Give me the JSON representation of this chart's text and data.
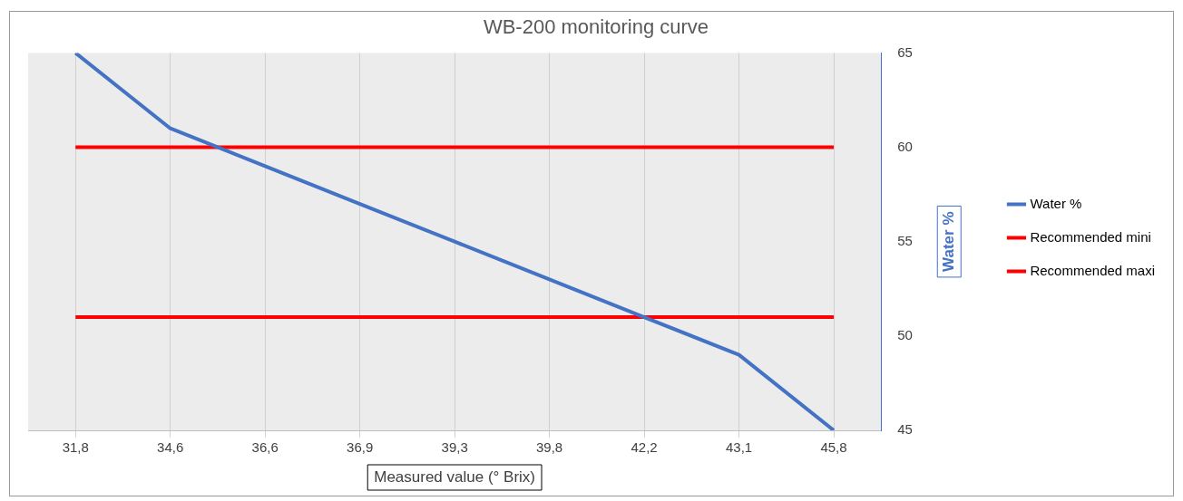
{
  "chart_data": {
    "type": "line",
    "title": "WB-200 monitoring curve",
    "xlabel": "Measured value (° Brix)",
    "ylabel": "Water %",
    "categories": [
      "31,8",
      "34,6",
      "36,6",
      "36,9",
      "39,3",
      "39,8",
      "42,2",
      "43,1",
      "45,8"
    ],
    "series": [
      {
        "name": "Water %",
        "color": "#4472c4",
        "values": [
          65,
          61,
          59,
          57,
          55,
          53,
          51,
          49,
          45
        ]
      },
      {
        "name": "Recommended mini",
        "color": "#ff0000",
        "values": [
          60,
          60,
          60,
          60,
          60,
          60,
          60,
          60,
          60
        ]
      },
      {
        "name": "Recommended maxi",
        "color": "#ff0000",
        "values": [
          51,
          51,
          51,
          51,
          51,
          51,
          51,
          51,
          51
        ]
      }
    ],
    "ylim": [
      45,
      65
    ],
    "yticks": [
      45,
      50,
      55,
      60,
      65
    ],
    "grid": "x",
    "legend": "right",
    "marker": "none",
    "line_style": "solid"
  }
}
